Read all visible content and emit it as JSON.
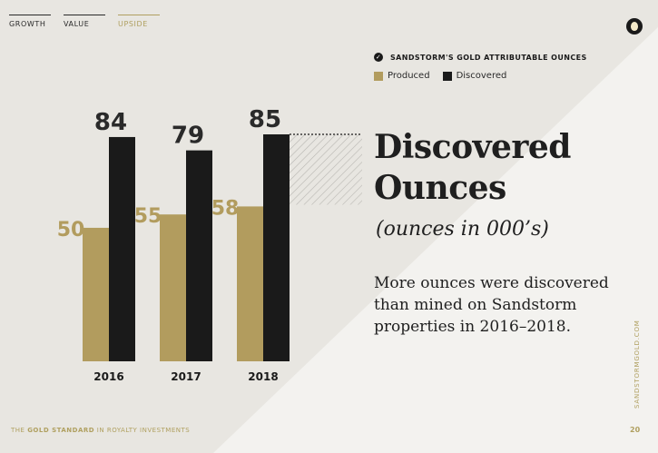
{
  "nav": {
    "items": [
      {
        "label": "GROWTH",
        "active": false
      },
      {
        "label": "VALUE",
        "active": false
      },
      {
        "label": "UPSIDE",
        "active": true
      }
    ]
  },
  "legend": {
    "title": "SANDSTORM'S GOLD ATTRIBUTABLE OUNCES",
    "produced": "Produced",
    "discovered": "Discovered"
  },
  "colors": {
    "produced": "#b29c5e",
    "discovered": "#1a1a1a",
    "gold_text": "#b0a060"
  },
  "chart_data": {
    "type": "bar",
    "categories": [
      "2016",
      "2017",
      "2018"
    ],
    "series": [
      {
        "name": "Produced",
        "values": [
          50,
          55,
          58
        ]
      },
      {
        "name": "Discovered",
        "values": [
          84,
          79,
          85
        ]
      }
    ],
    "title": "",
    "xlabel": "",
    "ylabel": "",
    "ylim": [
      0,
      100
    ],
    "grid": false,
    "legend": "top-right"
  },
  "text": {
    "heading_line1": "Discovered",
    "heading_line2": "Ounces",
    "subheading": "(ounces in 000’s)",
    "body": "More ounces were discovered than mined on Sandstorm properties in 2016–2018."
  },
  "footer": {
    "prefix": "THE ",
    "bold": "GOLD STANDARD",
    "suffix": " IN ROYALTY INVESTMENTS",
    "page_number": "20",
    "website": "SANDSTORMGOLD.COM"
  }
}
